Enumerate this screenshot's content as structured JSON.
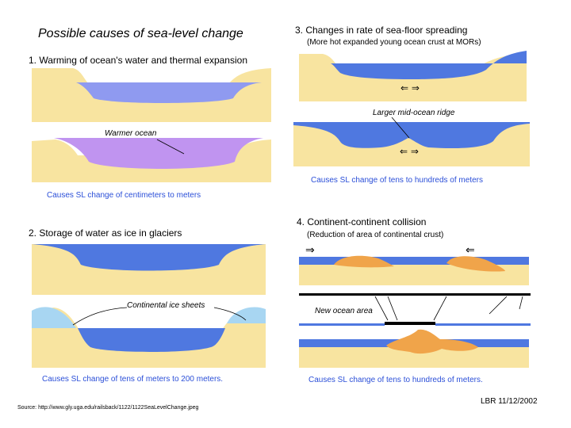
{
  "title": "Possible causes of sea-level change",
  "sections": {
    "s1": {
      "heading": "1. Warming of ocean's water and thermal expansion",
      "label": "Warmer ocean",
      "effect": "Causes SL change of centimeters to meters"
    },
    "s2": {
      "heading": "2. Storage of water as ice in glaciers",
      "label": "Continental ice sheets",
      "effect": "Causes SL change of tens of meters to 200 meters."
    },
    "s3": {
      "heading": "3. Changes in rate of sea-floor spreading",
      "subheading": "(More hot expanded young ocean crust at MORs)",
      "label": "Larger mid-ocean ridge",
      "effect": "Causes SL change of tens to hundreds of meters"
    },
    "s4": {
      "heading": "4. Continent-continent collision",
      "subheading": "(Reduction of area of continental crust)",
      "label": "New ocean area",
      "effect": "Causes SL change of tens to hundreds of meters."
    }
  },
  "footer": {
    "source": "Source: http://www.gly.uga.edu/railsback/1122/1122SeaLevelChange.jpeg",
    "credit": "LBR 11/12/2002"
  },
  "colors": {
    "sand": "#f8e4a0",
    "ocean": "#4f78e0",
    "ocean_light": "#8f9af0",
    "warm_ocean": "#c094f0",
    "ice": "#a8d6f2",
    "orogen": "#f0a44a"
  }
}
